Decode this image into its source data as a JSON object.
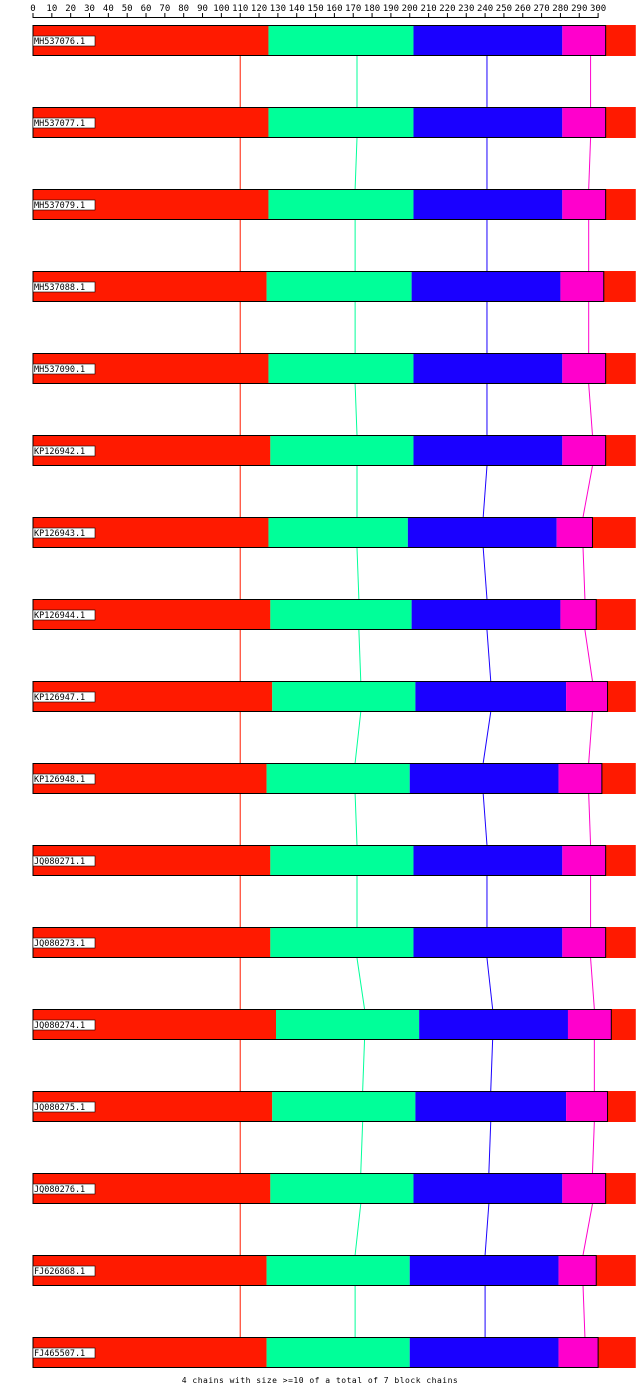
{
  "chart_data": {
    "type": "bar",
    "orientation": "horizontal-stacked",
    "x_ticks": [
      0,
      10,
      20,
      30,
      40,
      50,
      60,
      70,
      80,
      90,
      100,
      110,
      120,
      130,
      140,
      150,
      160,
      170,
      180,
      190,
      200,
      210,
      220,
      230,
      240,
      250,
      260,
      270,
      280,
      290,
      300
    ],
    "xlim": [
      0,
      306
    ],
    "block_colors": [
      "#ff1a00",
      "#00ff99",
      "#1a00ff",
      "#ff00cc"
    ],
    "sequences": [
      {
        "name": "MH537076.1",
        "blocks": [
          [
            0,
            125
          ],
          [
            125,
            202
          ],
          [
            202,
            281
          ],
          [
            281,
            304
          ],
          [
            304,
            320
          ]
        ]
      },
      {
        "name": "MH537077.1",
        "blocks": [
          [
            0,
            125
          ],
          [
            125,
            202
          ],
          [
            202,
            281
          ],
          [
            281,
            304
          ],
          [
            304,
            320
          ]
        ]
      },
      {
        "name": "MH537079.1",
        "blocks": [
          [
            0,
            125
          ],
          [
            125,
            202
          ],
          [
            202,
            281
          ],
          [
            281,
            304
          ],
          [
            304,
            320
          ]
        ]
      },
      {
        "name": "MH537088.1",
        "blocks": [
          [
            0,
            124
          ],
          [
            124,
            201
          ],
          [
            201,
            280
          ],
          [
            280,
            303
          ],
          [
            303,
            320
          ]
        ]
      },
      {
        "name": "MH537090.1",
        "blocks": [
          [
            0,
            125
          ],
          [
            125,
            202
          ],
          [
            202,
            281
          ],
          [
            281,
            304
          ],
          [
            304,
            320
          ]
        ]
      },
      {
        "name": "KP126942.1",
        "blocks": [
          [
            0,
            126
          ],
          [
            126,
            202
          ],
          [
            202,
            281
          ],
          [
            281,
            304
          ],
          [
            304,
            320
          ]
        ]
      },
      {
        "name": "KP126943.1",
        "blocks": [
          [
            0,
            125
          ],
          [
            125,
            199
          ],
          [
            199,
            278
          ],
          [
            278,
            297
          ],
          [
            297,
            320
          ]
        ]
      },
      {
        "name": "KP126944.1",
        "blocks": [
          [
            0,
            126
          ],
          [
            126,
            201
          ],
          [
            201,
            280
          ],
          [
            280,
            299
          ],
          [
            299,
            320
          ]
        ]
      },
      {
        "name": "KP126947.1",
        "blocks": [
          [
            0,
            127
          ],
          [
            127,
            203
          ],
          [
            203,
            283
          ],
          [
            283,
            305
          ],
          [
            305,
            320
          ]
        ]
      },
      {
        "name": "KP126948.1",
        "blocks": [
          [
            0,
            124
          ],
          [
            124,
            200
          ],
          [
            200,
            279
          ],
          [
            279,
            302
          ],
          [
            302,
            320
          ]
        ]
      },
      {
        "name": "JQ080271.1",
        "blocks": [
          [
            0,
            126
          ],
          [
            126,
            202
          ],
          [
            202,
            281
          ],
          [
            281,
            304
          ],
          [
            304,
            320
          ]
        ]
      },
      {
        "name": "JQ080273.1",
        "blocks": [
          [
            0,
            126
          ],
          [
            126,
            202
          ],
          [
            202,
            281
          ],
          [
            281,
            304
          ],
          [
            304,
            320
          ]
        ]
      },
      {
        "name": "JQ080274.1",
        "blocks": [
          [
            0,
            129
          ],
          [
            129,
            205
          ],
          [
            205,
            284
          ],
          [
            284,
            307
          ],
          [
            307,
            320
          ]
        ]
      },
      {
        "name": "JQ080275.1",
        "blocks": [
          [
            0,
            127
          ],
          [
            127,
            203
          ],
          [
            203,
            283
          ],
          [
            283,
            305
          ],
          [
            305,
            320
          ]
        ]
      },
      {
        "name": "JQ080276.1",
        "blocks": [
          [
            0,
            126
          ],
          [
            126,
            202
          ],
          [
            202,
            281
          ],
          [
            281,
            304
          ],
          [
            304,
            320
          ]
        ]
      },
      {
        "name": "FJ626868.1",
        "blocks": [
          [
            0,
            124
          ],
          [
            124,
            200
          ],
          [
            200,
            279
          ],
          [
            279,
            299
          ],
          [
            299,
            320
          ]
        ]
      },
      {
        "name": "FJ465507.1",
        "blocks": [
          [
            0,
            124
          ],
          [
            124,
            200
          ],
          [
            200,
            279
          ],
          [
            279,
            300
          ],
          [
            300,
            320
          ]
        ]
      }
    ],
    "chain_positions": [
      [
        110,
        110,
        110,
        110,
        110,
        110,
        110,
        110,
        110,
        110,
        110,
        110,
        110,
        110,
        110,
        110,
        110
      ],
      [
        172,
        172,
        171,
        171,
        171,
        172,
        172,
        173,
        174,
        171,
        172,
        172,
        176,
        175,
        174,
        171,
        171
      ],
      [
        241,
        241,
        241,
        241,
        241,
        241,
        239,
        241,
        243,
        239,
        241,
        241,
        244,
        243,
        242,
        240,
        240
      ],
      [
        296,
        296,
        295,
        295,
        295,
        297,
        292,
        293,
        297,
        295,
        296,
        296,
        298,
        298,
        297,
        292,
        293
      ]
    ]
  },
  "footer": {
    "text": "4 chains with size >=10 of a total of 7 block chains"
  }
}
